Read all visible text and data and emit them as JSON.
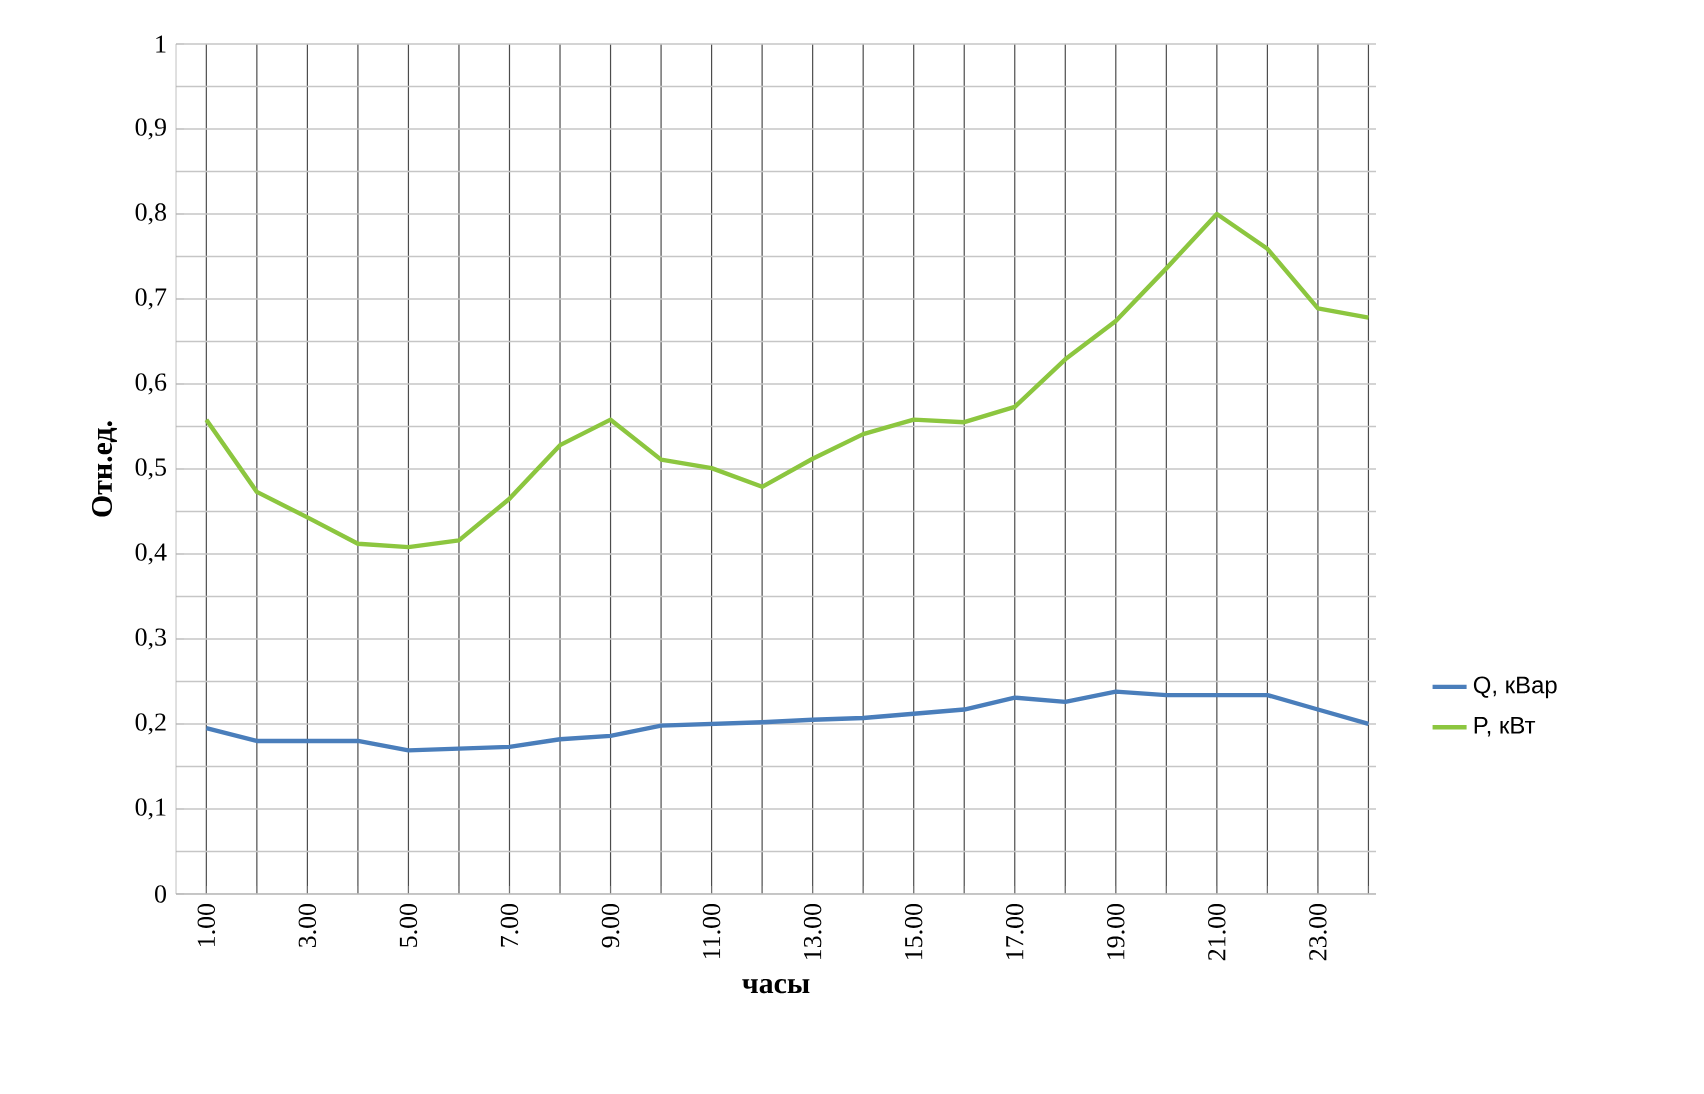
{
  "chart_data": {
    "type": "line",
    "xlabel": "часы",
    "ylabel": "Отн.ед.",
    "categories": [
      "1.00",
      null,
      "3.00",
      null,
      "5.00",
      null,
      "7.00",
      null,
      "9.00",
      null,
      "11.00",
      null,
      "13.00",
      null,
      "15.00",
      null,
      "17.00",
      null,
      "19.00",
      null,
      "21.00",
      null,
      "23.00",
      null
    ],
    "series": [
      {
        "name": "Q, кВар",
        "color": "#4a7ebb",
        "values": [
          0.195,
          0.18,
          0.18,
          0.18,
          0.169,
          0.171,
          0.173,
          0.182,
          0.186,
          0.198,
          0.2,
          0.202,
          0.205,
          0.207,
          0.212,
          0.217,
          0.231,
          0.226,
          0.238,
          0.234,
          0.234,
          0.234,
          0.217,
          0.2
        ]
      },
      {
        "name": "P, кВт",
        "color": "#8cc63f",
        "values": [
          0.558,
          0.473,
          0.443,
          0.412,
          0.408,
          0.416,
          0.465,
          0.528,
          0.558,
          0.511,
          0.501,
          0.479,
          0.512,
          0.541,
          0.558,
          0.555,
          0.573,
          0.629,
          0.674,
          0.736,
          0.8,
          0.759,
          0.689,
          0.678
        ]
      }
    ],
    "ylim": [
      0,
      1
    ],
    "yticks": [
      0,
      {
        "value": 0.1,
        "label": "0,1"
      },
      {
        "value": 0.2,
        "label": "0,2"
      },
      {
        "value": 0.3,
        "label": "0,3"
      },
      {
        "value": 0.4,
        "label": "0,4"
      },
      {
        "value": 0.5,
        "label": "0,5"
      },
      {
        "value": 0.6,
        "label": "0,6"
      },
      {
        "value": 0.7,
        "label": "0,7"
      },
      {
        "value": 0.8,
        "label": "0,8"
      },
      {
        "value": 0.9,
        "label": "0,9"
      },
      1
    ],
    "grid": true,
    "legend": "right",
    "marker": "none",
    "line_style": "solid"
  }
}
